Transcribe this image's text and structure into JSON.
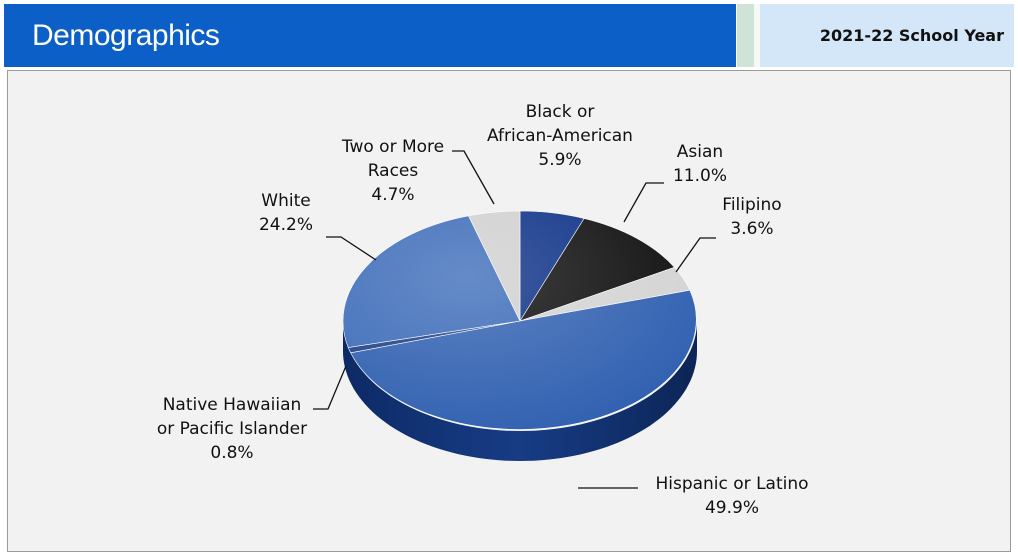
{
  "header": {
    "title": "Demographics",
    "year": "2021-22 School Year"
  },
  "colors": {
    "header_blue": "#0b5fc6",
    "year_box": "#d4e7f9",
    "panel_bg": "#f2f2f2"
  },
  "chart_data": {
    "type": "pie",
    "style": "3d",
    "slices": [
      {
        "label": "Black or African-American",
        "lines": [
          "Black or",
          "African-American"
        ],
        "value": 5.9,
        "display": "5.9%",
        "color": "#0b2f86"
      },
      {
        "label": "Asian",
        "lines": [
          "Asian"
        ],
        "value": 11.0,
        "display": "11.0%",
        "color": "#0d0d0d"
      },
      {
        "label": "Filipino",
        "lines": [
          "Filipino"
        ],
        "value": 3.6,
        "display": "3.6%",
        "color": "#d3d3d3"
      },
      {
        "label": "Hispanic or Latino",
        "lines": [
          "Hispanic or Latino"
        ],
        "value": 49.9,
        "display": "49.9%",
        "color": "#2f5fb0"
      },
      {
        "label": "Native Hawaiian or Pacific Islander",
        "lines": [
          "Native Hawaiian",
          "or Pacific Islander"
        ],
        "value": 0.8,
        "display": "0.8%",
        "color": "#1c3f86"
      },
      {
        "label": "White",
        "lines": [
          "White"
        ],
        "value": 24.2,
        "display": "24.2%",
        "color": "#3a6ab8"
      },
      {
        "label": "Two or More Races",
        "lines": [
          "Two or More",
          "Races"
        ],
        "value": 4.7,
        "display": "4.7%",
        "color": "#cfcfcf"
      }
    ]
  }
}
